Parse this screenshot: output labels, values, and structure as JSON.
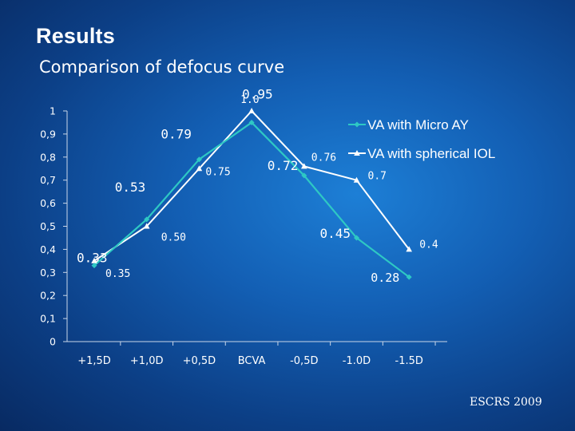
{
  "slide": {
    "title": "Results",
    "subtitle": "Comparison of defocus curve",
    "footer": "ESCRS 2009"
  },
  "colors": {
    "background": "#135fb4",
    "series_micro": "#2ec8c4",
    "series_spherical": "#ffffff"
  },
  "chart_data": {
    "type": "line",
    "categories": [
      "+1,5D",
      "+1,0D",
      "+0,5D",
      "BCVA",
      "-0,5D",
      "-1.0D",
      "-1.5D"
    ],
    "y_tick_labels": [
      "0",
      "0,1",
      "0,2",
      "0,3",
      "0,4",
      "0,5",
      "0,6",
      "0,7",
      "0,8",
      "0,9",
      "1"
    ],
    "ylim": [
      0,
      1
    ],
    "grid": false,
    "legend_position": "top-right",
    "series": [
      {
        "name": "VA with Micro AY",
        "color": "#2ec8c4",
        "marker": "diamond",
        "values": [
          0.33,
          0.53,
          0.79,
          0.95,
          0.72,
          0.45,
          0.28
        ],
        "labels": [
          "0.33",
          "0.53",
          "0.79",
          "0.95",
          "0.72",
          "0.45",
          "0.28"
        ]
      },
      {
        "name": "VA with spherical IOL",
        "color": "#ffffff",
        "marker": "triangle",
        "values": [
          0.35,
          0.5,
          0.75,
          1.0,
          0.76,
          0.7,
          0.4
        ],
        "labels": [
          "0.35",
          "0.50",
          "0.75",
          "1.0",
          "0.76",
          "0.7",
          "0.4"
        ]
      }
    ]
  }
}
